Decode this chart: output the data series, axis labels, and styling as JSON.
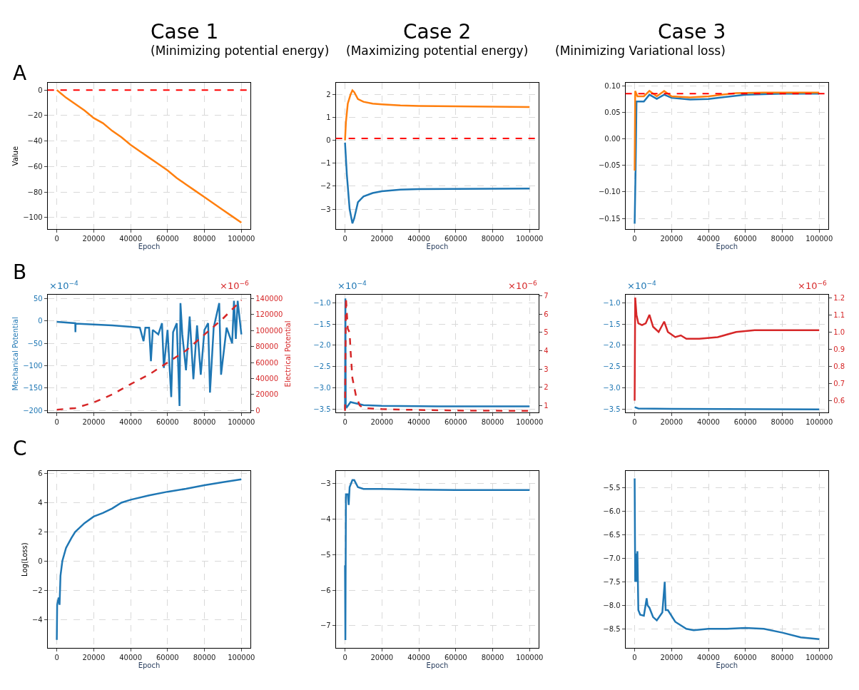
{
  "chart_data": [
    {
      "type": "line",
      "title": "Case 1",
      "subtitle": "(Minimizing potential energy)",
      "xlabel": "Epoch",
      "ylabel": "Value",
      "annotations": [
        "A"
      ],
      "xlim": [
        -5000,
        105000
      ],
      "xticks": [
        0,
        20000,
        40000,
        60000,
        80000,
        100000
      ],
      "ylim": [
        -109,
        5.5
      ],
      "yticks": [
        -100,
        -80,
        -60,
        -40,
        -20,
        0
      ],
      "grid": true,
      "series": [
        {
          "color": "#ff7f0e",
          "x": [
            0,
            2500,
            5000,
            10000,
            15000,
            20000,
            25000,
            30000,
            35000,
            40000,
            45000,
            50000,
            55000,
            60000,
            65000,
            70000,
            75000,
            80000,
            85000,
            90000,
            95000,
            100000
          ],
          "values": [
            0,
            -3,
            -6,
            -11,
            -16,
            -22,
            -26,
            -32,
            -37,
            -43,
            -48,
            -53,
            -58,
            -63,
            -69,
            -74,
            -79,
            -84,
            -89,
            -94,
            -99,
            -104
          ]
        }
      ],
      "ref_lines": [
        {
          "axis": "y",
          "value": 0,
          "color": "#ff0000",
          "line_style": "dashed"
        }
      ]
    },
    {
      "type": "line",
      "title": "Case 2",
      "subtitle": "(Maximizing potential energy)",
      "xlabel": "Epoch",
      "xlim": [
        -5000,
        105000
      ],
      "xticks": [
        0,
        20000,
        40000,
        60000,
        80000,
        100000
      ],
      "ylim": [
        -3.87,
        2.5
      ],
      "yticks": [
        -3,
        -2,
        -1,
        0,
        1,
        2
      ],
      "grid": true,
      "series": [
        {
          "color": "#1f77b4",
          "x": [
            0,
            1000,
            2500,
            4000,
            5000,
            7000,
            10000,
            15000,
            20000,
            30000,
            40000,
            60000,
            80000,
            100000
          ],
          "values": [
            -0.1,
            -1.5,
            -3.0,
            -3.62,
            -3.4,
            -2.7,
            -2.45,
            -2.3,
            -2.22,
            -2.15,
            -2.13,
            -2.12,
            -2.11,
            -2.1
          ]
        },
        {
          "color": "#ff7f0e",
          "x": [
            0,
            500,
            1500,
            3000,
            4000,
            5000,
            7000,
            10000,
            15000,
            20000,
            30000,
            40000,
            60000,
            80000,
            100000
          ],
          "values": [
            0,
            0.8,
            1.6,
            2.0,
            2.18,
            2.1,
            1.8,
            1.68,
            1.6,
            1.57,
            1.52,
            1.5,
            1.48,
            1.47,
            1.45
          ]
        }
      ],
      "ref_lines": [
        {
          "axis": "y",
          "value": 0.08,
          "color": "#ff0000",
          "line_style": "dashed"
        }
      ]
    },
    {
      "type": "line",
      "title": "Case 3",
      "subtitle": "(Minimizing Variational loss)",
      "xlabel": "Epoch",
      "xlim": [
        -5000,
        105000
      ],
      "xticks": [
        0,
        20000,
        40000,
        60000,
        80000,
        100000
      ],
      "ylim": [
        -0.17,
        0.105
      ],
      "yticks": [
        {
          "value": -0.15,
          "label": "−0.15"
        },
        {
          "value": -0.1,
          "label": "−0.10"
        },
        {
          "value": -0.05,
          "label": "−0.05"
        },
        {
          "value": 0,
          "label": "0.00"
        },
        {
          "value": 0.05,
          "label": "0.05"
        },
        {
          "value": 0.1,
          "label": "0.10"
        }
      ],
      "grid": true,
      "series": [
        {
          "color": "#1f77b4",
          "x": [
            0,
            500,
            1000,
            5000,
            8000,
            12000,
            16000,
            20000,
            30000,
            40000,
            60000,
            80000,
            100000
          ],
          "values": [
            -0.16,
            -0.06,
            0.07,
            0.07,
            0.083,
            0.075,
            0.083,
            0.077,
            0.074,
            0.075,
            0.083,
            0.085,
            0.085
          ]
        },
        {
          "color": "#ff7f0e",
          "x": [
            0,
            300,
            1500,
            5000,
            8000,
            12000,
            16000,
            20000,
            30000,
            40000,
            55000,
            70000,
            100000
          ],
          "values": [
            -0.06,
            0.09,
            0.08,
            0.08,
            0.09,
            0.08,
            0.09,
            0.08,
            0.078,
            0.08,
            0.086,
            0.087,
            0.087
          ]
        }
      ],
      "ref_lines": [
        {
          "axis": "y",
          "value": 0.085,
          "color": "#ff0000",
          "line_style": "dashed"
        }
      ]
    },
    {
      "type": "line",
      "ylabel": "Mechanical Potential",
      "y2label": "Electrical Potential",
      "annotations": [
        "B",
        "×10$^{−4}$",
        "×10$^{−6}$"
      ],
      "xlim": [
        -5000,
        105000
      ],
      "xticks": [
        0,
        20000,
        40000,
        60000,
        80000,
        100000
      ],
      "ylim": [
        -205,
        58
      ],
      "yticks": [
        -200,
        -150,
        -100,
        -50,
        0,
        50
      ],
      "y2lim": [
        -2800,
        144500
      ],
      "y2ticks": [
        0,
        20000,
        40000,
        60000,
        80000,
        100000,
        120000,
        140000
      ],
      "grid": true,
      "series": [
        {
          "color": "#1f77b4",
          "x": [
            0,
            10000,
            10100,
            10200,
            20000,
            30000,
            40000,
            45000,
            47000,
            48000,
            50000,
            51000,
            52000,
            55000,
            57000,
            58000,
            60000,
            62000,
            63000,
            65000,
            66500,
            67000,
            68000,
            70000,
            72000,
            74000,
            76000,
            78000,
            80000,
            82000,
            83000,
            85000,
            88000,
            89000,
            92000,
            95000,
            96000,
            97000,
            98000,
            100000
          ],
          "values": [
            -2,
            -5,
            -25,
            -6,
            -8,
            -10,
            -13,
            -15,
            -45,
            -15,
            -15,
            -90,
            -20,
            -30,
            -5,
            -105,
            -20,
            -170,
            -25,
            -5,
            -190,
            40,
            -30,
            -110,
            10,
            -130,
            -10,
            -120,
            -20,
            -5,
            -160,
            -15,
            40,
            -120,
            -15,
            -50,
            45,
            -40,
            45,
            -30
          ]
        },
        {
          "color": "#d62728",
          "axis": "y2",
          "line_style": "dashed",
          "x": [
            0,
            10000,
            20000,
            30000,
            40000,
            50000,
            60000,
            70000,
            80000,
            90000,
            100000
          ],
          "values": [
            1000,
            3000,
            10000,
            20000,
            33000,
            45000,
            60000,
            75000,
            95000,
            115000,
            138000
          ]
        }
      ]
    },
    {
      "type": "line",
      "annotations": [
        "×10$^{−4}$",
        "×10$^{−6}$"
      ],
      "xlim": [
        -5000,
        105000
      ],
      "xticks": [
        0,
        20000,
        40000,
        60000,
        80000,
        100000
      ],
      "ylim": [
        -3.58,
        -0.82
      ],
      "yticks": [
        {
          "value": -3.5,
          "label": "−3.5"
        },
        {
          "value": -3,
          "label": "−3.0"
        },
        {
          "value": -2.5,
          "label": "−2.5"
        },
        {
          "value": -2,
          "label": "−2.0"
        },
        {
          "value": -1.5,
          "label": "−1.5"
        },
        {
          "value": -1,
          "label": "−1.0"
        }
      ],
      "y2lim": [
        0.6,
        7.05
      ],
      "y2ticks": [
        1,
        2,
        3,
        4,
        5,
        6,
        7
      ],
      "grid": true,
      "series": [
        {
          "color": "#1f77b4",
          "x": [
            0,
            200,
            400,
            1000,
            3000,
            5000,
            10000,
            20000,
            50000,
            100000
          ],
          "values": [
            -3.5,
            -0.9,
            -3.4,
            -3.45,
            -3.33,
            -3.35,
            -3.4,
            -3.42,
            -3.43,
            -3.43
          ]
        },
        {
          "color": "#d62728",
          "axis": "y2",
          "line_style": "dashed",
          "x": [
            0,
            500,
            1500,
            2500,
            3000,
            4000,
            5000,
            6000,
            8000,
            10000,
            20000,
            40000,
            60000,
            100000
          ],
          "values": [
            0.7,
            6.9,
            5.2,
            5.0,
            4.0,
            2.5,
            2.0,
            1.5,
            1.0,
            0.85,
            0.8,
            0.75,
            0.72,
            0.7
          ]
        }
      ]
    },
    {
      "type": "line",
      "annotations": [
        "×10$^{−4}$",
        "×10$^{−6}$"
      ],
      "xlim": [
        -5000,
        105000
      ],
      "xticks": [
        0,
        20000,
        40000,
        60000,
        80000,
        100000
      ],
      "ylim": [
        -3.58,
        -0.82
      ],
      "yticks": [
        {
          "value": -3.5,
          "label": "−3.5"
        },
        {
          "value": -3,
          "label": "−3.0"
        },
        {
          "value": -2.5,
          "label": "−2.5"
        },
        {
          "value": -2,
          "label": "−2.0"
        },
        {
          "value": -1.5,
          "label": "−1.5"
        },
        {
          "value": -1,
          "label": "−1.0"
        }
      ],
      "y2lim": [
        0.53,
        1.215
      ],
      "y2ticks": [
        0.6,
        0.7,
        0.8,
        0.9,
        {
          "value": 1,
          "label": "1.0"
        },
        1.1,
        1.2
      ],
      "grid": true,
      "series": [
        {
          "color": "#1f77b4",
          "x": [
            0,
            2000,
            20000,
            100000
          ],
          "values": [
            -3.45,
            -3.48,
            -3.49,
            -3.5
          ]
        },
        {
          "color": "#d62728",
          "axis": "y2",
          "x": [
            0,
            300,
            1000,
            2000,
            4000,
            6000,
            8000,
            10000,
            13000,
            16000,
            18000,
            22000,
            25000,
            28000,
            35000,
            45000,
            55000,
            65000,
            80000,
            100000
          ],
          "values": [
            0.6,
            1.2,
            1.1,
            1.05,
            1.04,
            1.05,
            1.1,
            1.03,
            1.0,
            1.06,
            1.0,
            0.97,
            0.98,
            0.96,
            0.96,
            0.97,
            1.0,
            1.01,
            1.01,
            1.01
          ]
        }
      ]
    },
    {
      "type": "line",
      "xlabel": "Epoch",
      "ylabel": "Log(Loss)",
      "annotations": [
        "C"
      ],
      "xlim": [
        -5000,
        105000
      ],
      "xticks": [
        0,
        20000,
        40000,
        60000,
        80000,
        100000
      ],
      "ylim": [
        -5.97,
        6.18
      ],
      "yticks": [
        -4,
        -2,
        0,
        2,
        4,
        6
      ],
      "grid": true,
      "series": [
        {
          "color": "#1f77b4",
          "x": [
            0,
            200,
            1000,
            1500,
            2000,
            3000,
            5000,
            8000,
            10000,
            15000,
            20000,
            25000,
            30000,
            35000,
            40000,
            50000,
            60000,
            70000,
            80000,
            90000,
            100000
          ],
          "values": [
            -5.4,
            -3,
            -2.5,
            -3,
            -1,
            0,
            0.9,
            1.6,
            2,
            2.6,
            3.05,
            3.3,
            3.6,
            4.0,
            4.2,
            4.5,
            4.75,
            4.95,
            5.2,
            5.4,
            5.6
          ]
        }
      ]
    },
    {
      "type": "line",
      "xlabel": "Epoch",
      "xlim": [
        -5000,
        105000
      ],
      "xticks": [
        0,
        20000,
        40000,
        60000,
        80000,
        100000
      ],
      "ylim": [
        -7.63,
        -2.64
      ],
      "yticks": [
        -7,
        -6,
        -5,
        -4,
        -3
      ],
      "grid": true,
      "series": [
        {
          "color": "#1f77b4",
          "x": [
            0,
            200,
            500,
            1500,
            2000,
            2500,
            4000,
            5000,
            7000,
            10000,
            20000,
            40000,
            60000,
            100000
          ],
          "values": [
            -5.3,
            -7.4,
            -3.3,
            -3.3,
            -3.6,
            -3.1,
            -2.9,
            -2.9,
            -3.1,
            -3.15,
            -3.15,
            -3.17,
            -3.18,
            -3.18
          ]
        }
      ]
    },
    {
      "type": "line",
      "xlabel": "Epoch",
      "xlim": [
        -5000,
        105000
      ],
      "xticks": [
        0,
        20000,
        40000,
        60000,
        80000,
        100000
      ],
      "ylim": [
        -8.91,
        -5.14
      ],
      "yticks": [
        {
          "value": -8.5,
          "label": "−8.5"
        },
        {
          "value": -8,
          "label": "−8.0"
        },
        {
          "value": -7.5,
          "label": "−7.5"
        },
        {
          "value": -7,
          "label": "−7.0"
        },
        {
          "value": -6.5,
          "label": "−6.5"
        },
        {
          "value": -6,
          "label": "−6.0"
        },
        {
          "value": -5.5,
          "label": "−5.5"
        }
      ],
      "grid": true,
      "series": [
        {
          "color": "#1f77b4",
          "x": [
            0,
            300,
            600,
            1000,
            1500,
            2000,
            3000,
            5000,
            6500,
            7000,
            8000,
            10000,
            12000,
            15000,
            16300,
            16800,
            18000,
            22000,
            28000,
            32000,
            40000,
            50000,
            60000,
            70000,
            80000,
            90000,
            100000
          ],
          "values": [
            -5.3,
            -7.5,
            -6.9,
            -7.5,
            -6.85,
            -8.1,
            -8.2,
            -8.22,
            -7.85,
            -8.0,
            -8.05,
            -8.25,
            -8.32,
            -8.15,
            -7.5,
            -8.1,
            -8.1,
            -8.35,
            -8.5,
            -8.53,
            -8.5,
            -8.5,
            -8.48,
            -8.5,
            -8.58,
            -8.68,
            -8.72
          ]
        }
      ]
    }
  ]
}
